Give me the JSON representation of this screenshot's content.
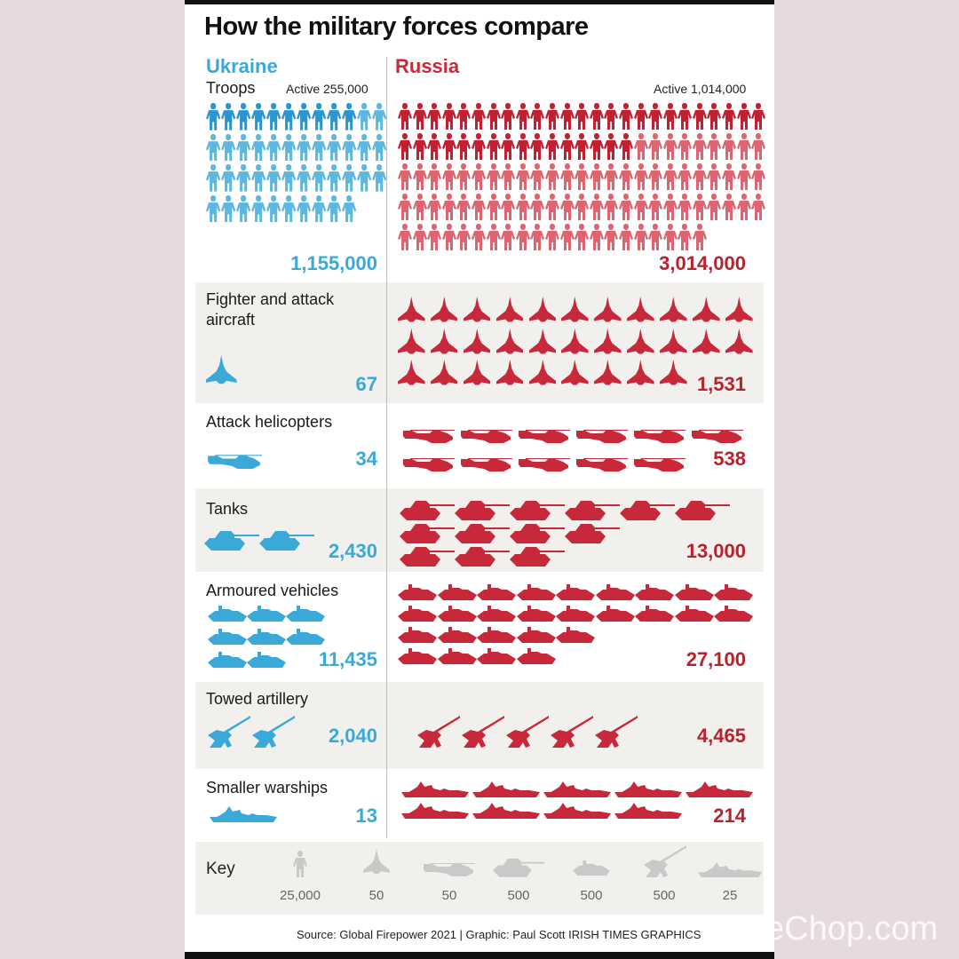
{
  "title": "How the military forces compare",
  "colors": {
    "ukraine": "#3aa9d8",
    "ukraine_active": "#2b95cf",
    "ukraine_light": "#5cb8e0",
    "russia": "#c8293a",
    "russia_active": "#c0202f",
    "russia_light": "#dc6570",
    "key_icon": "#c9c9c9"
  },
  "countries": {
    "left": "Ukraine",
    "right": "Russia"
  },
  "source": "Source: Global Firepower 2021  |  Graphic: Paul Scott IRISH TIMES GRAPHICS",
  "watermark": "eChop.com",
  "chart_data": {
    "type": "table",
    "title": "How the military forces compare",
    "series": [
      {
        "name": "Ukraine"
      },
      {
        "name": "Russia"
      }
    ],
    "categories": [
      "Troops",
      "Fighter and attack aircraft",
      "Attack helicopters",
      "Tanks",
      "Armoured vehicles",
      "Towed artillery",
      "Smaller warships"
    ],
    "rows": [
      {
        "key": "troops",
        "label": "Troops",
        "icon": "soldier-icon",
        "ukraine": 1155000,
        "ukraine_display": "1,155,000",
        "russia": 3014000,
        "russia_display": "3,014,000",
        "ukraine_active_note": "Active 255,000",
        "russia_active_note": "Active 1,014,000",
        "ukraine_icon_count": 46,
        "ukraine_active_icons": 10,
        "russia_icon_count": 121,
        "russia_active_icons": 41,
        "ukraine_per_row": 12,
        "russia_per_row": 25
      },
      {
        "key": "aircraft",
        "label": "Fighter and attack aircraft",
        "icon": "fighter-jet-icon",
        "ukraine": 67,
        "ukraine_display": "67",
        "russia": 1531,
        "russia_display": "1,531",
        "ukraine_icon_count": 1,
        "russia_icon_count": 31,
        "russia_per_row": 11
      },
      {
        "key": "helicopters",
        "label": "Attack helicopters",
        "icon": "helicopter-icon",
        "ukraine": 34,
        "ukraine_display": "34",
        "russia": 538,
        "russia_display": "538",
        "ukraine_icon_count": 1,
        "russia_icon_count": 11,
        "russia_per_row": 6
      },
      {
        "key": "tanks",
        "label": "Tanks",
        "icon": "tank-icon",
        "ukraine": 2430,
        "ukraine_display": "2,430",
        "russia": 13000,
        "russia_display": "13,000",
        "ukraine_icon_count": 2,
        "russia_icon_count": 13,
        "russia_rows": [
          6,
          4,
          3
        ]
      },
      {
        "key": "armoured",
        "label": "Armoured vehicles",
        "icon": "armoured-vehicle-icon",
        "ukraine": 11435,
        "ukraine_display": "11,435",
        "russia": 27100,
        "russia_display": "27,100",
        "ukraine_icon_count": 8,
        "ukraine_per_row": 3,
        "russia_icon_count": 27,
        "russia_rows": [
          9,
          9,
          5,
          4
        ]
      },
      {
        "key": "artillery",
        "label": "Towed artillery",
        "icon": "artillery-icon",
        "ukraine": 2040,
        "ukraine_display": "2,040",
        "russia": 4465,
        "russia_display": "4,465",
        "ukraine_icon_count": 2,
        "russia_icon_count": 5
      },
      {
        "key": "warships",
        "label": "Smaller warships",
        "icon": "warship-icon",
        "ukraine": 13,
        "ukraine_display": "13",
        "russia": 214,
        "russia_display": "214",
        "ukraine_icon_count": 1,
        "russia_icon_count": 9,
        "russia_per_row": 5
      }
    ],
    "key": {
      "label": "Key",
      "items": [
        {
          "icon": "soldier",
          "value": "25,000"
        },
        {
          "icon": "jet",
          "value": "50"
        },
        {
          "icon": "heli",
          "value": "50"
        },
        {
          "icon": "tank",
          "value": "500"
        },
        {
          "icon": "apc",
          "value": "500"
        },
        {
          "icon": "artillery",
          "value": "500"
        },
        {
          "icon": "ship",
          "value": "25"
        }
      ]
    }
  }
}
